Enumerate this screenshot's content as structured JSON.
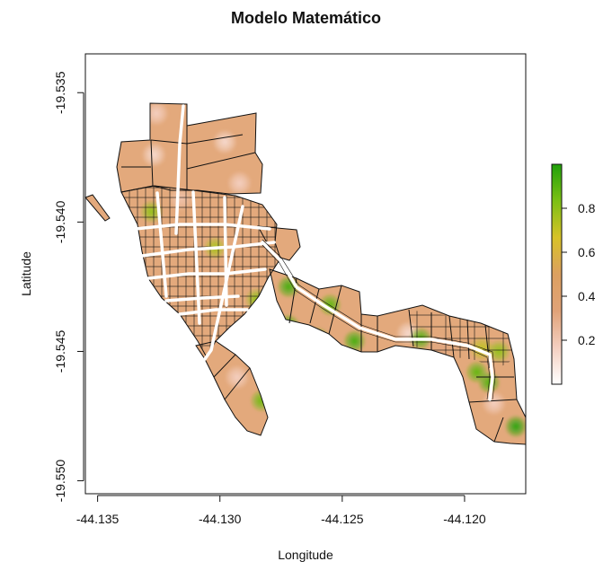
{
  "chart_data": {
    "type": "choropleth-map",
    "title": "Modelo Matemático",
    "xlabel": "Longitude",
    "ylabel": "Latitude",
    "xlim": [
      -44.1355,
      -44.1175
    ],
    "ylim": [
      -19.5505,
      -19.5335
    ],
    "x_ticks": [
      -44.135,
      -44.13,
      -44.125,
      -44.12
    ],
    "x_tick_labels": [
      "-44.135",
      "-44.130",
      "-44.125",
      "-44.120"
    ],
    "y_ticks": [
      -19.535,
      -19.54,
      -19.545,
      -19.55
    ],
    "y_tick_labels": [
      "-19.535",
      "-19.540",
      "-19.545",
      "-19.550"
    ],
    "legend": {
      "placement": "right",
      "range": [
        0,
        1
      ],
      "ticks": [
        0.2,
        0.4,
        0.6,
        0.8
      ],
      "tick_labels": [
        "0.2",
        "0.4",
        "0.6",
        "0.8"
      ],
      "colors": [
        "#ffffff",
        "#f4cfc0",
        "#e0a278",
        "#dca060",
        "#d8c228",
        "#7cc014",
        "#20a00a"
      ]
    },
    "hotspots": [
      {
        "lon": -44.1326,
        "lat": -19.5358,
        "value": 0.15
      },
      {
        "lon": -44.1298,
        "lat": -19.5369,
        "value": 0.12
      },
      {
        "lon": -44.1327,
        "lat": -19.5374,
        "value": 0.12
      },
      {
        "lon": -44.1316,
        "lat": -19.5391,
        "value": 0.2
      },
      {
        "lon": -44.1292,
        "lat": -19.5385,
        "value": 0.15
      },
      {
        "lon": -44.1328,
        "lat": -19.5396,
        "value": 0.6
      },
      {
        "lon": -44.1302,
        "lat": -19.541,
        "value": 0.55
      },
      {
        "lon": -44.1285,
        "lat": -19.543,
        "value": 0.6
      },
      {
        "lon": -44.1272,
        "lat": -19.5425,
        "value": 0.85
      },
      {
        "lon": -44.1272,
        "lat": -19.544,
        "value": 0.85
      },
      {
        "lon": -44.126,
        "lat": -19.5445,
        "value": 0.8
      },
      {
        "lon": -44.1255,
        "lat": -19.5432,
        "value": 0.75
      },
      {
        "lon": -44.1245,
        "lat": -19.5446,
        "value": 0.85
      },
      {
        "lon": -44.1223,
        "lat": -19.5443,
        "value": 0.12
      },
      {
        "lon": -44.1218,
        "lat": -19.5445,
        "value": 0.8
      },
      {
        "lon": -44.121,
        "lat": -19.5448,
        "value": 0.3
      },
      {
        "lon": -44.1193,
        "lat": -19.5449,
        "value": 0.5
      },
      {
        "lon": -44.1195,
        "lat": -19.5458,
        "value": 0.75
      },
      {
        "lon": -44.119,
        "lat": -19.5462,
        "value": 0.8
      },
      {
        "lon": -44.1186,
        "lat": -19.545,
        "value": 0.6
      },
      {
        "lon": -44.1293,
        "lat": -19.546,
        "value": 0.15
      },
      {
        "lon": -44.1283,
        "lat": -19.5469,
        "value": 0.7
      },
      {
        "lon": -44.1188,
        "lat": -19.547,
        "value": 0.15
      },
      {
        "lon": -44.1179,
        "lat": -19.5479,
        "value": 0.95
      }
    ]
  }
}
